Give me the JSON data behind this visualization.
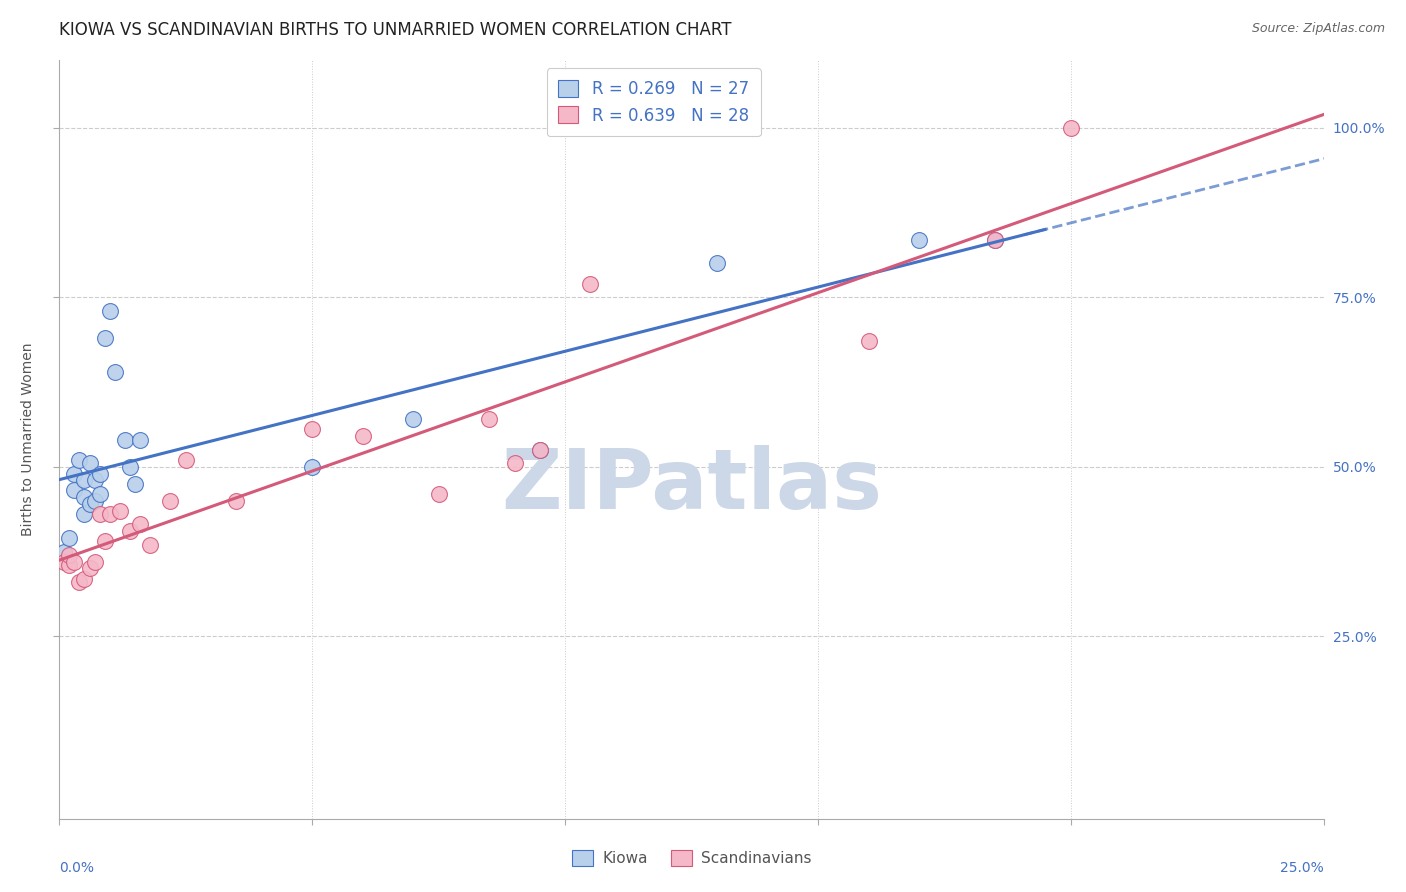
{
  "title": "KIOWA VS SCANDINAVIAN BIRTHS TO UNMARRIED WOMEN CORRELATION CHART",
  "source": "Source: ZipAtlas.com",
  "ylabel": "Births to Unmarried Women",
  "xlim": [
    0.0,
    0.25
  ],
  "ylim": [
    -0.02,
    1.1
  ],
  "yticks": [
    0.25,
    0.5,
    0.75,
    1.0
  ],
  "ytick_labels": [
    "25.0%",
    "50.0%",
    "75.0%",
    "100.0%"
  ],
  "kiowa_R": 0.269,
  "kiowa_N": 27,
  "scand_R": 0.639,
  "scand_N": 28,
  "kiowa_color": "#b8d0ea",
  "kiowa_line_color": "#4472c4",
  "kiowa_edge_color": "#4472c4",
  "scand_color": "#f4b8c8",
  "scand_line_color": "#d45a7a",
  "scand_edge_color": "#d45a7a",
  "kiowa_x": [
    0.001,
    0.002,
    0.003,
    0.003,
    0.004,
    0.005,
    0.005,
    0.005,
    0.006,
    0.006,
    0.007,
    0.007,
    0.008,
    0.008,
    0.009,
    0.01,
    0.011,
    0.013,
    0.014,
    0.015,
    0.016,
    0.05,
    0.07,
    0.095,
    0.13,
    0.17,
    0.185
  ],
  "kiowa_y": [
    0.375,
    0.395,
    0.465,
    0.49,
    0.51,
    0.43,
    0.455,
    0.48,
    0.445,
    0.505,
    0.45,
    0.48,
    0.49,
    0.46,
    0.69,
    0.73,
    0.64,
    0.54,
    0.5,
    0.475,
    0.54,
    0.5,
    0.57,
    0.525,
    0.8,
    0.835,
    0.835
  ],
  "scand_x": [
    0.001,
    0.002,
    0.002,
    0.003,
    0.004,
    0.005,
    0.006,
    0.007,
    0.008,
    0.009,
    0.01,
    0.012,
    0.014,
    0.016,
    0.018,
    0.022,
    0.025,
    0.035,
    0.05,
    0.06,
    0.075,
    0.085,
    0.09,
    0.095,
    0.105,
    0.16,
    0.185,
    0.2
  ],
  "scand_y": [
    0.36,
    0.355,
    0.37,
    0.36,
    0.33,
    0.335,
    0.35,
    0.36,
    0.43,
    0.39,
    0.43,
    0.435,
    0.405,
    0.415,
    0.385,
    0.45,
    0.51,
    0.45,
    0.555,
    0.545,
    0.46,
    0.57,
    0.505,
    0.525,
    0.77,
    0.685,
    0.835,
    1.0
  ],
  "watermark": "ZIPatlas",
  "watermark_color": "#ccd8e8",
  "title_fontsize": 12,
  "source_fontsize": 9,
  "axis_label_fontsize": 10,
  "tick_fontsize": 10,
  "legend_fontsize": 12
}
